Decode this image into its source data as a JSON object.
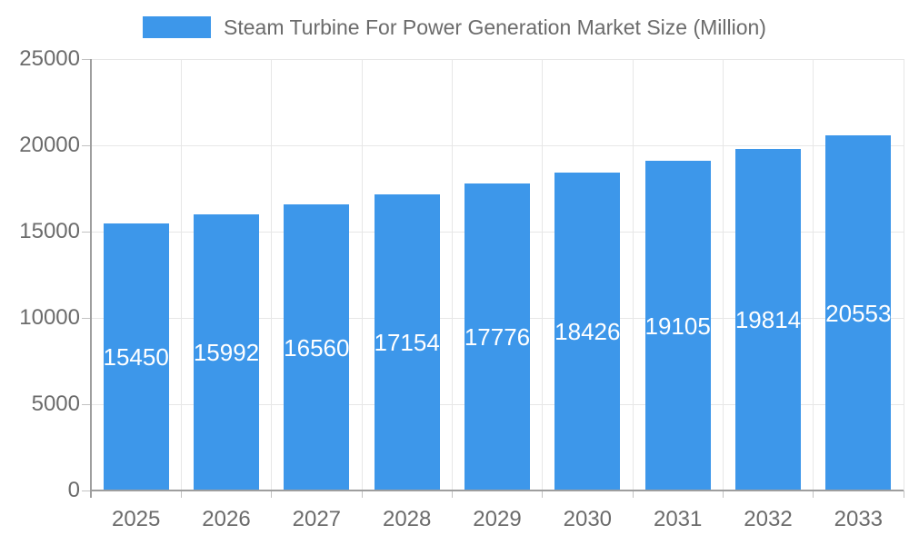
{
  "legend": {
    "label": "Steam Turbine For Power Generation Market Size (Million)"
  },
  "colors": {
    "bar": "#3d97ea",
    "axis": "#9e9e9e",
    "grid": "#e7e7e7",
    "tick": "#c2c2c2",
    "tick_label": "#6b6b6b",
    "value_label": "#ffffff",
    "legend_label": "#6b6b6b",
    "background": "#ffffff"
  },
  "chart_data": {
    "type": "bar",
    "title": "",
    "series_name": "Steam Turbine For Power Generation Market Size (Million)",
    "categories": [
      "2025",
      "2026",
      "2027",
      "2028",
      "2029",
      "2030",
      "2031",
      "2032",
      "2033"
    ],
    "values": [
      15450,
      15992,
      16560,
      17154,
      17776,
      18426,
      19105,
      19814,
      20553
    ],
    "xlabel": "",
    "ylabel": "",
    "ylim": [
      0,
      25000
    ],
    "yticks": [
      0,
      5000,
      10000,
      15000,
      20000,
      25000
    ],
    "grid": true,
    "legend_position": "top",
    "value_label_position": "inside-center"
  }
}
